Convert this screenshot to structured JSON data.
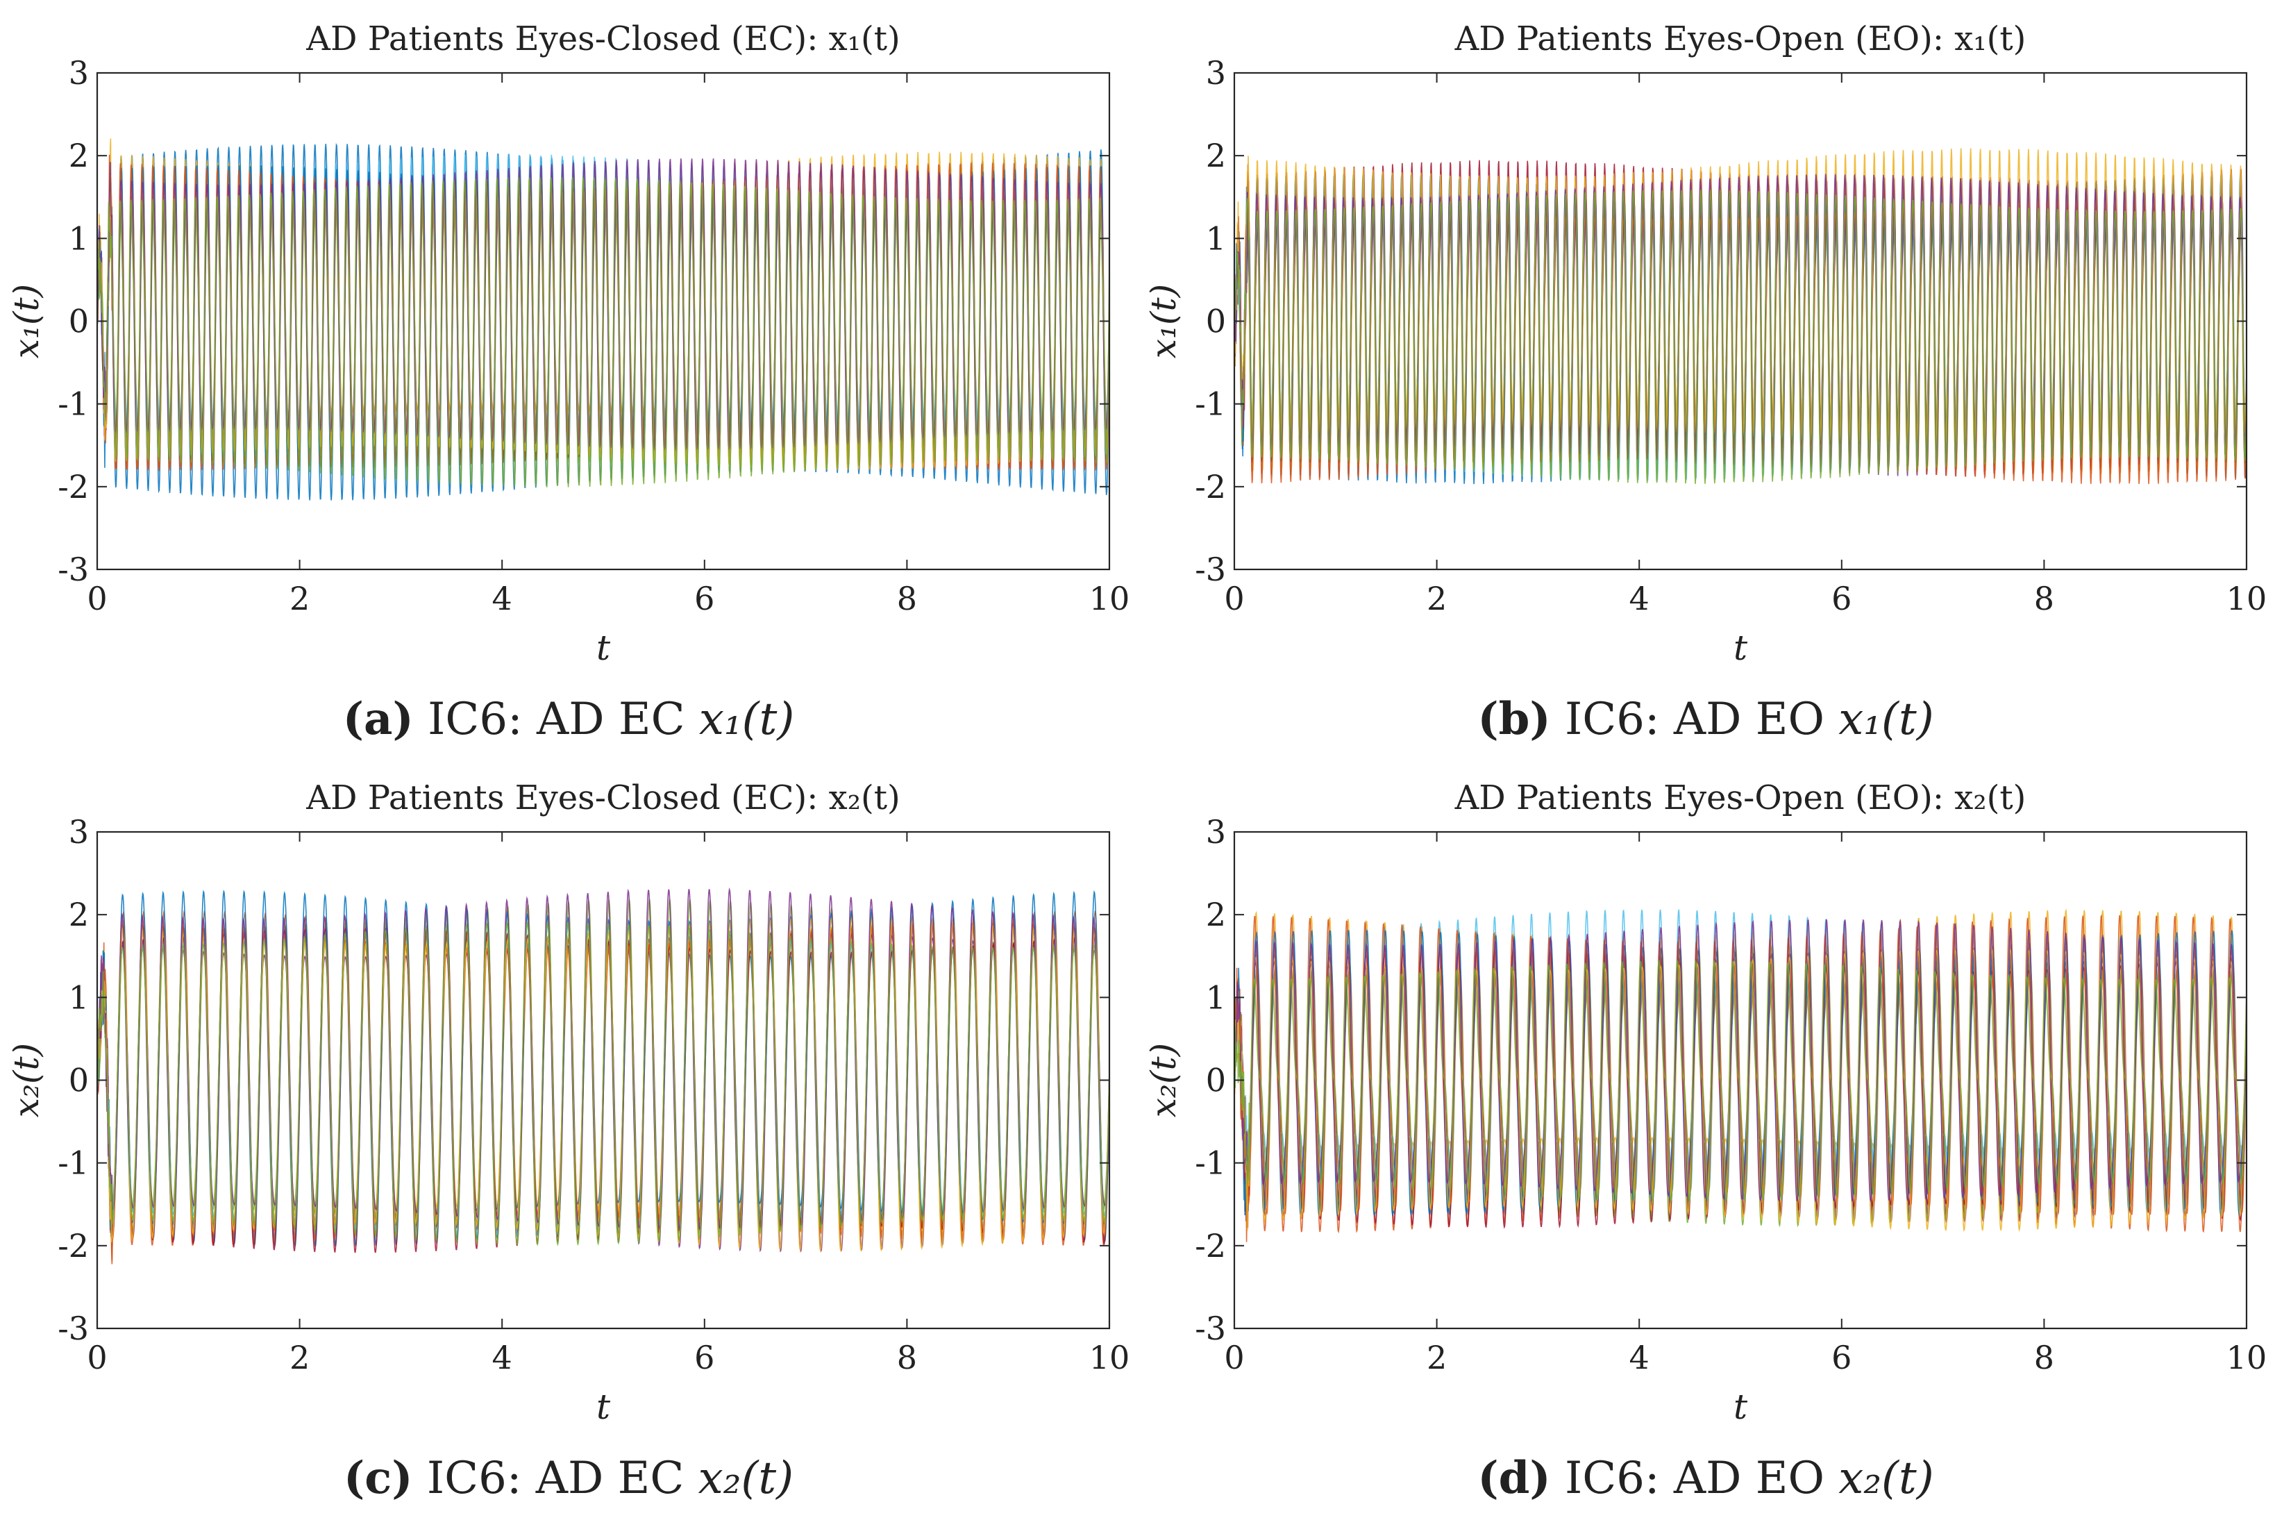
{
  "figure": {
    "panels": [
      {
        "id": "a",
        "caption": {
          "letter": "(a)",
          "prefix": "IC6: AD EC",
          "expr": "x₁(t)"
        },
        "chart_data": {
          "type": "line",
          "title": "AD Patients Eyes-Closed (EC): x₁(t)",
          "xlabel": "t",
          "ylabel": "x₁(t)",
          "xlim": [
            0,
            10
          ],
          "ylim": [
            -3,
            3
          ],
          "xticks": [
            0,
            2,
            4,
            6,
            8,
            10
          ],
          "yticks": [
            -3,
            -2,
            -1,
            0,
            1,
            2,
            3
          ],
          "series_count": 12,
          "oscillation_frequency_hz": 9.4,
          "envelope": {
            "amplitude": 2.2,
            "modulation_depth": 0.28,
            "phase_spread": 0.5
          }
        }
      },
      {
        "id": "b",
        "caption": {
          "letter": "(b)",
          "prefix": "IC6: AD EO",
          "expr": "x₁(t)"
        },
        "chart_data": {
          "type": "line",
          "title": "AD Patients Eyes-Open (EO): x₁(t)",
          "xlabel": "t",
          "ylabel": "x₁(t)",
          "xlim": [
            0,
            10
          ],
          "ylim": [
            -3,
            3
          ],
          "xticks": [
            0,
            2,
            4,
            6,
            8,
            10
          ],
          "yticks": [
            -3,
            -2,
            -1,
            0,
            1,
            2,
            3
          ],
          "series_count": 12,
          "oscillation_frequency_hz": 10.5,
          "envelope": {
            "amplitude": 2.2,
            "modulation_depth": 0.3,
            "phase_spread": 0.9
          }
        }
      },
      {
        "id": "c",
        "caption": {
          "letter": "(c)",
          "prefix": "IC6: AD EC",
          "expr": "x₂(t)"
        },
        "chart_data": {
          "type": "line",
          "title": "AD Patients Eyes-Closed (EC): x₂(t)",
          "xlabel": "t",
          "ylabel": "x₂(t)",
          "xlim": [
            0,
            10
          ],
          "ylim": [
            -3,
            3
          ],
          "xticks": [
            0,
            2,
            4,
            6,
            8,
            10
          ],
          "yticks": [
            -3,
            -2,
            -1,
            0,
            1,
            2,
            3
          ],
          "series_count": 12,
          "oscillation_frequency_hz": 5.0,
          "envelope": {
            "amplitude": 2.35,
            "modulation_depth": 0.15,
            "phase_spread": 0.35
          }
        }
      },
      {
        "id": "d",
        "caption": {
          "letter": "(d)",
          "prefix": "IC6: AD EO",
          "expr": "x₂(t)"
        },
        "chart_data": {
          "type": "line",
          "title": "AD Patients Eyes-Open (EO): x₂(t)",
          "xlabel": "t",
          "ylabel": "x₂(t)",
          "xlim": [
            0,
            10
          ],
          "ylim": [
            -3,
            3
          ],
          "xticks": [
            0,
            2,
            4,
            6,
            8,
            10
          ],
          "yticks": [
            -3,
            -2,
            -1,
            0,
            1,
            2,
            3
          ],
          "series_count": 12,
          "oscillation_frequency_hz": 5.5,
          "envelope": {
            "amplitude": 2.15,
            "modulation_depth": 0.35,
            "phase_spread": 0.7
          }
        }
      }
    ],
    "series_colors": [
      "#0072BD",
      "#D95319",
      "#EDB120",
      "#7E2F8E",
      "#77AC30",
      "#4DBEEE",
      "#A2142F",
      "#0072BD",
      "#D95319",
      "#EDB120",
      "#7E2F8E",
      "#77AC30"
    ]
  }
}
